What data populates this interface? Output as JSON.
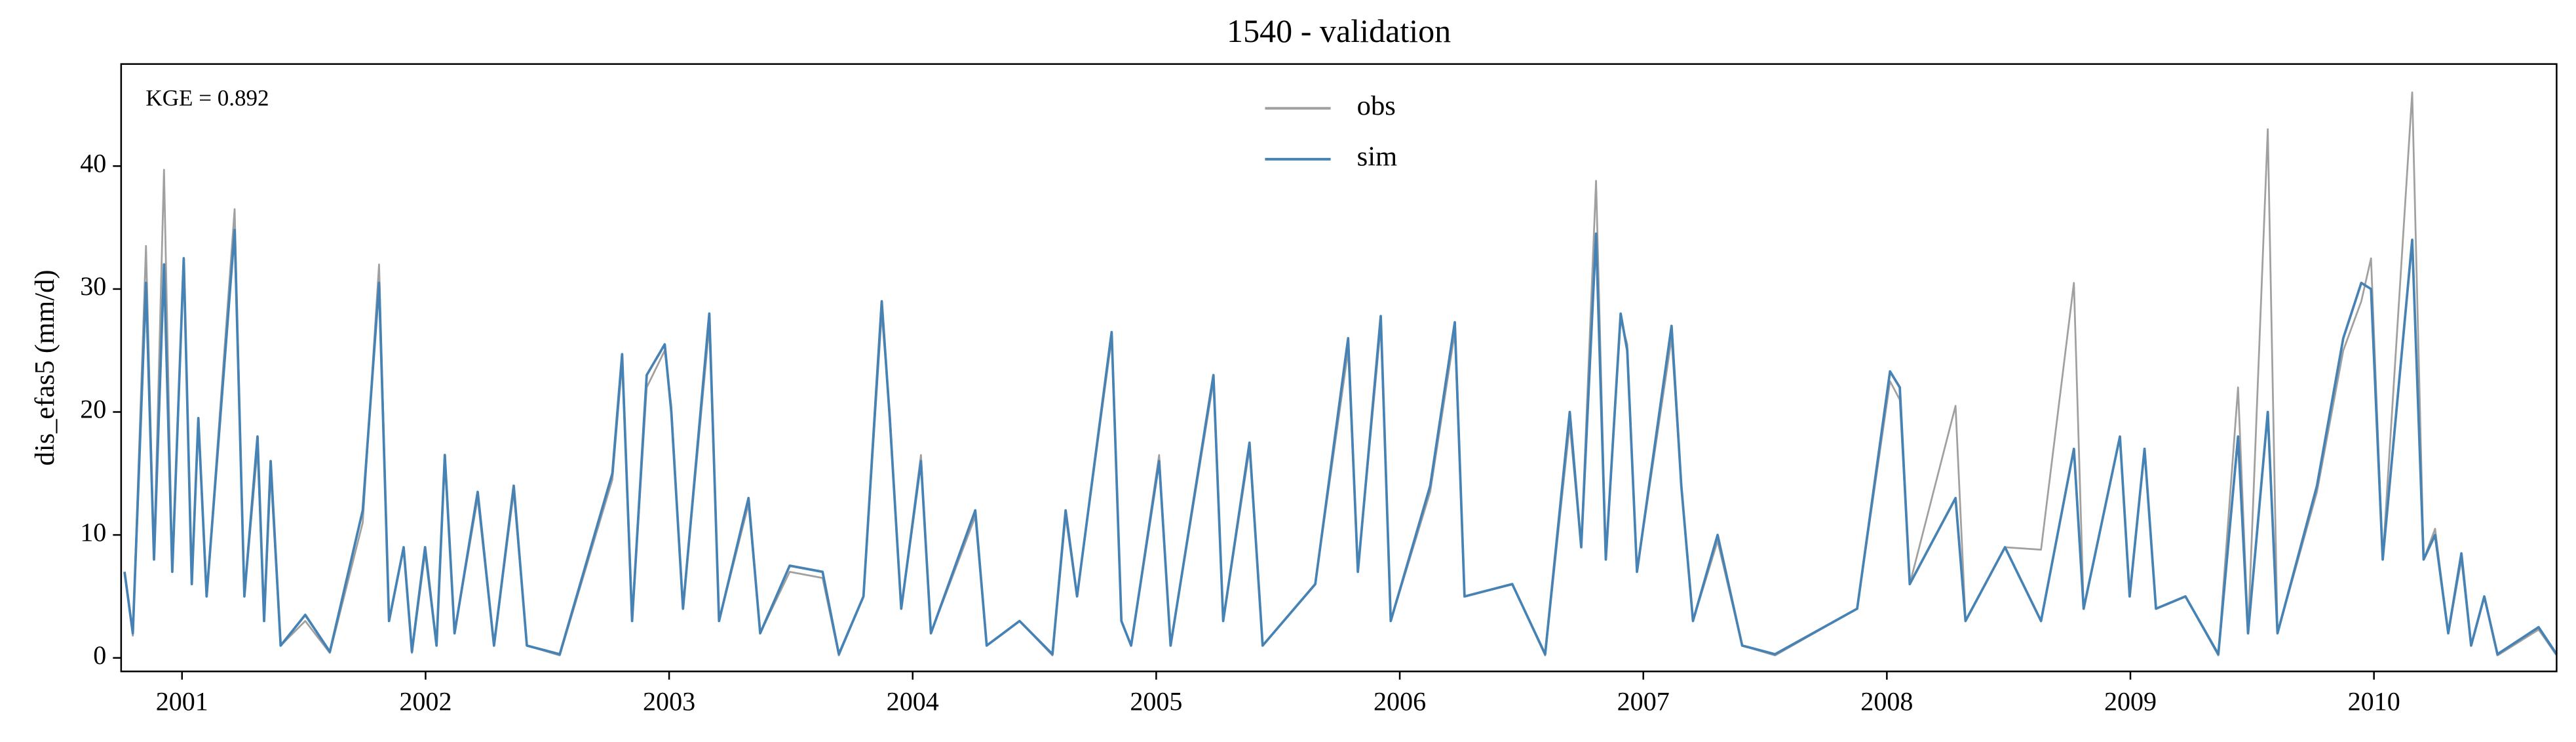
{
  "chart_data": {
    "type": "line",
    "title": "1540 - validation",
    "ylabel": "dis_efas5 (mm/d)",
    "annotation": "KGE = 0.892",
    "xlim": [
      2000.75,
      2010.75
    ],
    "xticks": [
      2001,
      2002,
      2003,
      2004,
      2005,
      2006,
      2007,
      2008,
      2009,
      2010
    ],
    "ylim": [
      -1.1,
      48.3
    ],
    "yticks": [
      0,
      10,
      20,
      30,
      40
    ],
    "legend": "upper center",
    "x": [
      2000.764,
      2000.798,
      2000.852,
      2000.885,
      2000.926,
      2000.96,
      2001.007,
      2001.04,
      2001.067,
      2001.101,
      2001.216,
      2001.256,
      2001.31,
      2001.337,
      2001.364,
      2001.405,
      2001.506,
      2001.607,
      2001.742,
      2001.809,
      2001.85,
      2001.91,
      2001.944,
      2001.998,
      2002.045,
      2002.079,
      2002.119,
      2002.214,
      2002.281,
      2002.362,
      2002.416,
      2002.551,
      2002.767,
      2002.807,
      2002.848,
      2002.908,
      2002.982,
      2003.009,
      2003.057,
      2003.165,
      2003.205,
      2003.326,
      2003.374,
      2003.495,
      2003.63,
      2003.697,
      2003.798,
      2003.873,
      2003.906,
      2003.953,
      2004.034,
      2004.075,
      2004.257,
      2004.304,
      2004.439,
      2004.574,
      2004.628,
      2004.675,
      2004.817,
      2004.857,
      2004.897,
      2005.012,
      2005.059,
      2005.235,
      2005.275,
      2005.383,
      2005.437,
      2005.653,
      2005.788,
      2005.828,
      2005.922,
      2005.963,
      2006.125,
      2006.226,
      2006.266,
      2006.462,
      2006.597,
      2006.698,
      2006.745,
      2006.806,
      2006.846,
      2006.907,
      2006.934,
      2006.974,
      2007.116,
      2007.156,
      2007.204,
      2007.305,
      2007.406,
      2007.541,
      2007.878,
      2008.013,
      2008.053,
      2008.094,
      2008.282,
      2008.323,
      2008.485,
      2008.633,
      2008.768,
      2008.808,
      2008.957,
      2008.997,
      2009.058,
      2009.105,
      2009.226,
      2009.361,
      2009.442,
      2009.483,
      2009.564,
      2009.604,
      2009.766,
      2009.874,
      2009.948,
      2009.988,
      2010.036,
      2010.157,
      2010.204,
      2010.251,
      2010.305,
      2010.359,
      2010.399,
      2010.453,
      2010.507,
      2010.676,
      2010.75
    ],
    "series": [
      {
        "name": "obs",
        "color": "#a0a0a0",
        "values": [
          7,
          1.8,
          33.5,
          8,
          39.7,
          7,
          32.5,
          6,
          19,
          5,
          36.5,
          5,
          17,
          3,
          15,
          1,
          3,
          0.4,
          11,
          32,
          3,
          9,
          0.4,
          8.5,
          1,
          16,
          2,
          13,
          1,
          13.5,
          1,
          0.2,
          14.5,
          24,
          3,
          22,
          25,
          20.5,
          4,
          27,
          3,
          12.5,
          2,
          7,
          6.5,
          0.2,
          5,
          28,
          20,
          4,
          16.5,
          2,
          11.5,
          1,
          3,
          0.2,
          11.5,
          5,
          26,
          3,
          1,
          16.5,
          1,
          22.5,
          3,
          17,
          1,
          6,
          25,
          7,
          27,
          3,
          13.5,
          26.5,
          5,
          6,
          0.2,
          19,
          9,
          38.8,
          8,
          27.5,
          25.5,
          7,
          26,
          14,
          3,
          9.5,
          1,
          0.2,
          4,
          22.5,
          21,
          6,
          20.5,
          3,
          9,
          8.8,
          30.5,
          4,
          18,
          5,
          17,
          4,
          5,
          0.2,
          22,
          2,
          43,
          2,
          13.5,
          25,
          29,
          32.5,
          8,
          46,
          8,
          10.5,
          2,
          8,
          1,
          5,
          0.2,
          2.3,
          0.2
        ]
      },
      {
        "name": "sim",
        "color": "#4682b4",
        "values": [
          7,
          2,
          30.5,
          8,
          32,
          7,
          32.5,
          6,
          19.5,
          5,
          34.8,
          5,
          18,
          3,
          16,
          1,
          3.5,
          0.5,
          12,
          30.5,
          3,
          9,
          0.5,
          9,
          1,
          16.5,
          2,
          13.5,
          1,
          14,
          1,
          0.3,
          15,
          24.7,
          3,
          23,
          25.5,
          20,
          4,
          28,
          3,
          13,
          2,
          7.5,
          7,
          0.3,
          5,
          29,
          19.5,
          4,
          16,
          2,
          12,
          1,
          3,
          0.3,
          12,
          5,
          26.5,
          3,
          1,
          16,
          1,
          23,
          3,
          17.5,
          1,
          6,
          26,
          7,
          27.8,
          3,
          14,
          27.3,
          5,
          6,
          0.3,
          20,
          9,
          34.5,
          8,
          28,
          25,
          7,
          27,
          14,
          3,
          10,
          1,
          0.3,
          4,
          23.3,
          22,
          6,
          13,
          3,
          9,
          3,
          17,
          4,
          18,
          5,
          17,
          4,
          5,
          0.3,
          18,
          2,
          20,
          2,
          14,
          26,
          30.5,
          30,
          8,
          34,
          8,
          10,
          2,
          8.5,
          1,
          5,
          0.3,
          2.5,
          0.3
        ]
      }
    ]
  }
}
